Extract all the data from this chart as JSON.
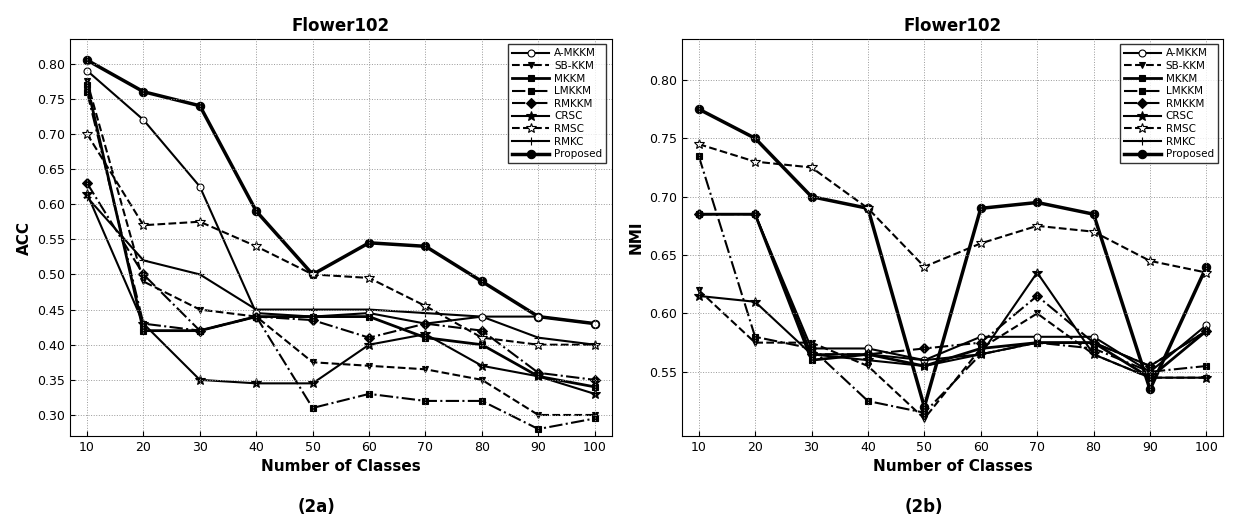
{
  "x": [
    10,
    20,
    30,
    40,
    50,
    60,
    70,
    80,
    90,
    100
  ],
  "acc": {
    "Proposed": [
      0.805,
      0.76,
      0.74,
      0.59,
      0.5,
      0.545,
      0.54,
      0.49,
      0.44,
      0.43
    ],
    "RMSC": [
      0.7,
      0.57,
      0.575,
      0.54,
      0.5,
      0.495,
      0.455,
      0.41,
      0.4,
      0.4
    ],
    "RMKC": [
      0.61,
      0.52,
      0.5,
      0.45,
      0.45,
      0.45,
      0.445,
      0.44,
      0.41,
      0.4
    ],
    "A-MKKM": [
      0.79,
      0.72,
      0.625,
      0.445,
      0.44,
      0.445,
      0.43,
      0.44,
      0.44,
      0.43
    ],
    "MKKM": [
      0.77,
      0.42,
      0.42,
      0.44,
      0.44,
      0.44,
      0.41,
      0.4,
      0.355,
      0.34
    ],
    "LMKKM": [
      0.76,
      0.43,
      0.42,
      0.44,
      0.31,
      0.33,
      0.32,
      0.32,
      0.28,
      0.295
    ],
    "RMKKM": [
      0.63,
      0.5,
      0.42,
      0.44,
      0.435,
      0.41,
      0.43,
      0.42,
      0.36,
      0.35
    ],
    "CRSC": [
      0.615,
      0.43,
      0.35,
      0.345,
      0.345,
      0.4,
      0.415,
      0.37,
      0.355,
      0.33
    ],
    "SB-KKM": [
      0.775,
      0.49,
      0.45,
      0.44,
      0.375,
      0.37,
      0.365,
      0.35,
      0.3,
      0.3
    ]
  },
  "nmi": {
    "Proposed": [
      0.775,
      0.75,
      0.7,
      0.69,
      0.52,
      0.69,
      0.695,
      0.685,
      0.535,
      0.64
    ],
    "RMSC": [
      0.745,
      0.73,
      0.725,
      0.69,
      0.64,
      0.66,
      0.675,
      0.67,
      0.645,
      0.635
    ],
    "A-MKKM": [
      0.685,
      0.685,
      0.57,
      0.57,
      0.56,
      0.58,
      0.58,
      0.58,
      0.55,
      0.59
    ],
    "MKKM": [
      0.685,
      0.685,
      0.56,
      0.565,
      0.555,
      0.57,
      0.575,
      0.575,
      0.545,
      0.585
    ],
    "RMKC": [
      0.685,
      0.685,
      0.565,
      0.565,
      0.56,
      0.565,
      0.575,
      0.575,
      0.555,
      0.585
    ],
    "RMKKM": [
      0.685,
      0.685,
      0.565,
      0.565,
      0.57,
      0.575,
      0.615,
      0.575,
      0.555,
      0.585
    ],
    "LMKKM": [
      0.735,
      0.58,
      0.57,
      0.525,
      0.515,
      0.565,
      0.575,
      0.57,
      0.55,
      0.555
    ],
    "CRSC": [
      0.615,
      0.61,
      0.565,
      0.56,
      0.555,
      0.565,
      0.635,
      0.565,
      0.545,
      0.545
    ],
    "SB-KKM": [
      0.62,
      0.575,
      0.575,
      0.555,
      0.51,
      0.57,
      0.6,
      0.565,
      0.545,
      0.545
    ]
  },
  "methods_acc": [
    "Proposed",
    "RMSC",
    "RMKC",
    "A-MKKM",
    "MKKM",
    "LMKKM",
    "RMKKM",
    "CRSC",
    "SB-KKM"
  ],
  "methods_nmi": [
    "Proposed",
    "RMSC",
    "A-MKKM",
    "MKKM",
    "RMKC",
    "RMKKM",
    "LMKKM",
    "CRSC",
    "SB-KKM"
  ],
  "style_map": {
    "A-MKKM": {
      "linestyle": "-",
      "marker": "o",
      "linewidth": 1.5,
      "markersize": 5,
      "mfc": "white"
    },
    "SB-KKM": {
      "linestyle": "--",
      "marker": "v",
      "linewidth": 1.5,
      "markersize": 5,
      "mfc": "black"
    },
    "MKKM": {
      "linestyle": "-",
      "marker": "s",
      "linewidth": 2.0,
      "markersize": 5,
      "mfc": "black"
    },
    "LMKKM": {
      "linestyle": "-.",
      "marker": "s",
      "linewidth": 1.5,
      "markersize": 5,
      "mfc": "black"
    },
    "RMKKM": {
      "linestyle": "-.",
      "marker": "D",
      "linewidth": 1.5,
      "markersize": 5,
      "mfc": "black"
    },
    "CRSC": {
      "linestyle": "-",
      "marker": "*",
      "linewidth": 1.5,
      "markersize": 7,
      "mfc": "black"
    },
    "RMSC": {
      "linestyle": "--",
      "marker": "*",
      "linewidth": 1.5,
      "markersize": 7,
      "mfc": "white"
    },
    "RMKC": {
      "linestyle": "-",
      "marker": "+",
      "linewidth": 1.5,
      "markersize": 6,
      "mfc": "black"
    },
    "Proposed": {
      "linestyle": "-",
      "marker": "o",
      "linewidth": 2.5,
      "markersize": 6,
      "mfc": "black"
    }
  },
  "legend_order": [
    "A-MKKM",
    "SB-KKM",
    "MKKM",
    "LMKKM",
    "RMKKM",
    "CRSC",
    "RMSC",
    "RMKC",
    "Proposed"
  ],
  "acc_ylim": [
    0.27,
    0.835
  ],
  "nmi_ylim": [
    0.495,
    0.835
  ],
  "acc_yticks": [
    0.3,
    0.35,
    0.4,
    0.45,
    0.5,
    0.55,
    0.6,
    0.65,
    0.7,
    0.75,
    0.8
  ],
  "nmi_yticks": [
    0.55,
    0.6,
    0.65,
    0.7,
    0.75,
    0.8
  ],
  "xticks": [
    10,
    20,
    30,
    40,
    50,
    60,
    70,
    80,
    90,
    100
  ],
  "title": "Flower102",
  "xlabel": "Number of Classes",
  "acc_ylabel": "ACC",
  "nmi_ylabel": "NMI",
  "caption_a": "(2a)",
  "caption_b": "(2b)"
}
